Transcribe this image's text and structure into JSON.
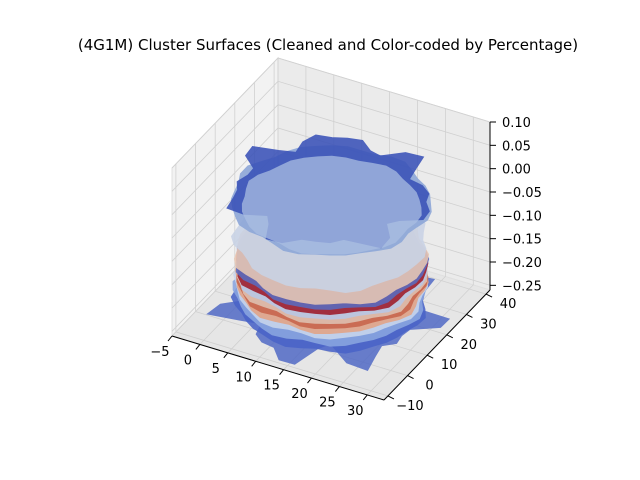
{
  "chart_data": {
    "type": "surface3d",
    "title": "(4G1M) Cluster Surfaces (Cleaned and Color-coded by Percentage)",
    "xlabel": "",
    "ylabel": "",
    "zlabel": "",
    "x_ticks": [
      "−5",
      "0",
      "5",
      "10",
      "15",
      "20",
      "25",
      "30"
    ],
    "y_ticks": [
      "−10",
      "0",
      "10",
      "20",
      "30",
      "40"
    ],
    "z_ticks": [
      "−0.25",
      "−0.20",
      "−0.15",
      "−0.10",
      "−0.05",
      "0.00",
      "0.05",
      "0.10"
    ],
    "xlim": [
      -5,
      33
    ],
    "ylim": [
      -12,
      42
    ],
    "zlim": [
      -0.26,
      0.1
    ],
    "colormap": "coolwarm",
    "grid": true,
    "layers": [
      {
        "z": -0.23,
        "color": "#4a64c8",
        "shade": "bottom"
      },
      {
        "z": -0.215,
        "color": "#8aa6e0"
      },
      {
        "z": -0.2,
        "color": "#c9d6ec"
      },
      {
        "z": -0.19,
        "color": "#e3a385"
      },
      {
        "z": -0.18,
        "color": "#c8644c"
      },
      {
        "z": -0.17,
        "color": "#dfc2b2"
      },
      {
        "z": -0.16,
        "color": "#b8c7e6"
      },
      {
        "z": -0.15,
        "color": "#9e1b2a"
      },
      {
        "z": -0.14,
        "color": "#5a6cc0"
      },
      {
        "z": -0.13,
        "color": "#e8c7b4"
      },
      {
        "z": -0.1,
        "color": "#c9d3e6"
      },
      {
        "z": -0.02,
        "color": "#8fa8d8",
        "shade": "top"
      },
      {
        "z": 0.0,
        "color": "#3a52b8",
        "shade": "spikes"
      }
    ]
  }
}
